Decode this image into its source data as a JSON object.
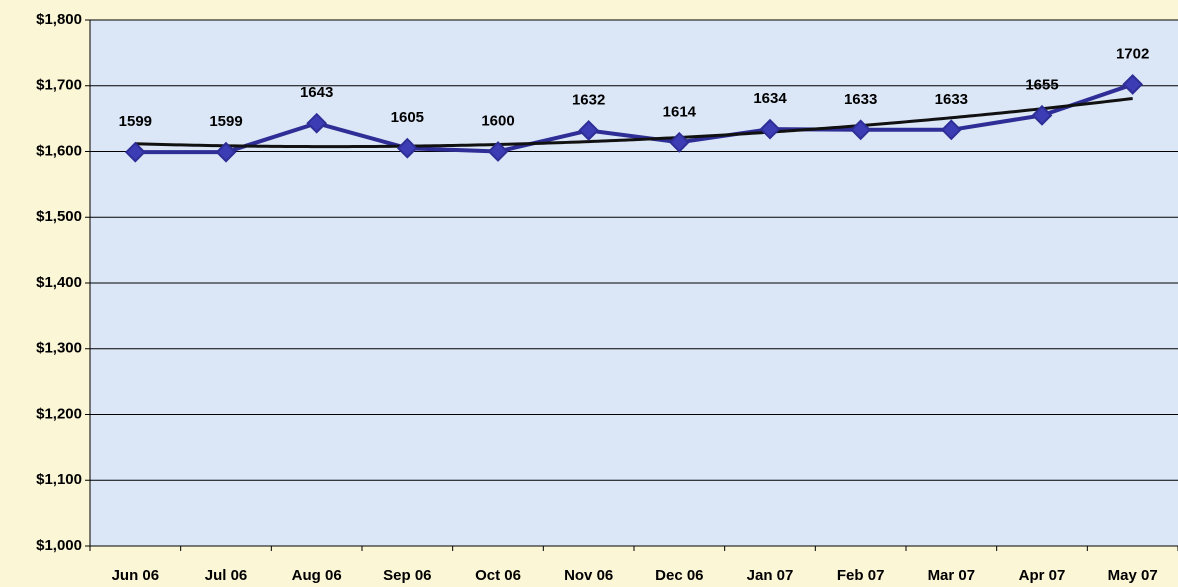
{
  "chart_data": {
    "type": "line",
    "categories": [
      "Jun 06",
      "Jul 06",
      "Aug 06",
      "Sep 06",
      "Oct 06",
      "Nov 06",
      "Dec 06",
      "Jan 07",
      "Feb 07",
      "Mar 07",
      "Apr 07",
      "May 07"
    ],
    "series": [
      {
        "color": "#2e2e96",
        "values": [
          1599,
          1599,
          1643,
          1605,
          1600,
          1632,
          1614,
          1634,
          1633,
          1633,
          1655,
          1702
        ]
      }
    ],
    "ylim": [
      1000,
      1800
    ],
    "yticks": [
      {
        "value": 1000,
        "label": "$1,000"
      },
      {
        "value": 1100,
        "label": "$1,100"
      },
      {
        "value": 1200,
        "label": "$1,200"
      },
      {
        "value": 1300,
        "label": "$1,300"
      },
      {
        "value": 1400,
        "label": "$1,400"
      },
      {
        "value": 1500,
        "label": "$1,500"
      },
      {
        "value": 1600,
        "label": "$1,600"
      },
      {
        "value": 1700,
        "label": "$1,700"
      },
      {
        "value": 1800,
        "label": "$1,800"
      }
    ],
    "grid": true,
    "trendline": {
      "type": "polynomial",
      "order": 2,
      "color": "#111111"
    }
  }
}
